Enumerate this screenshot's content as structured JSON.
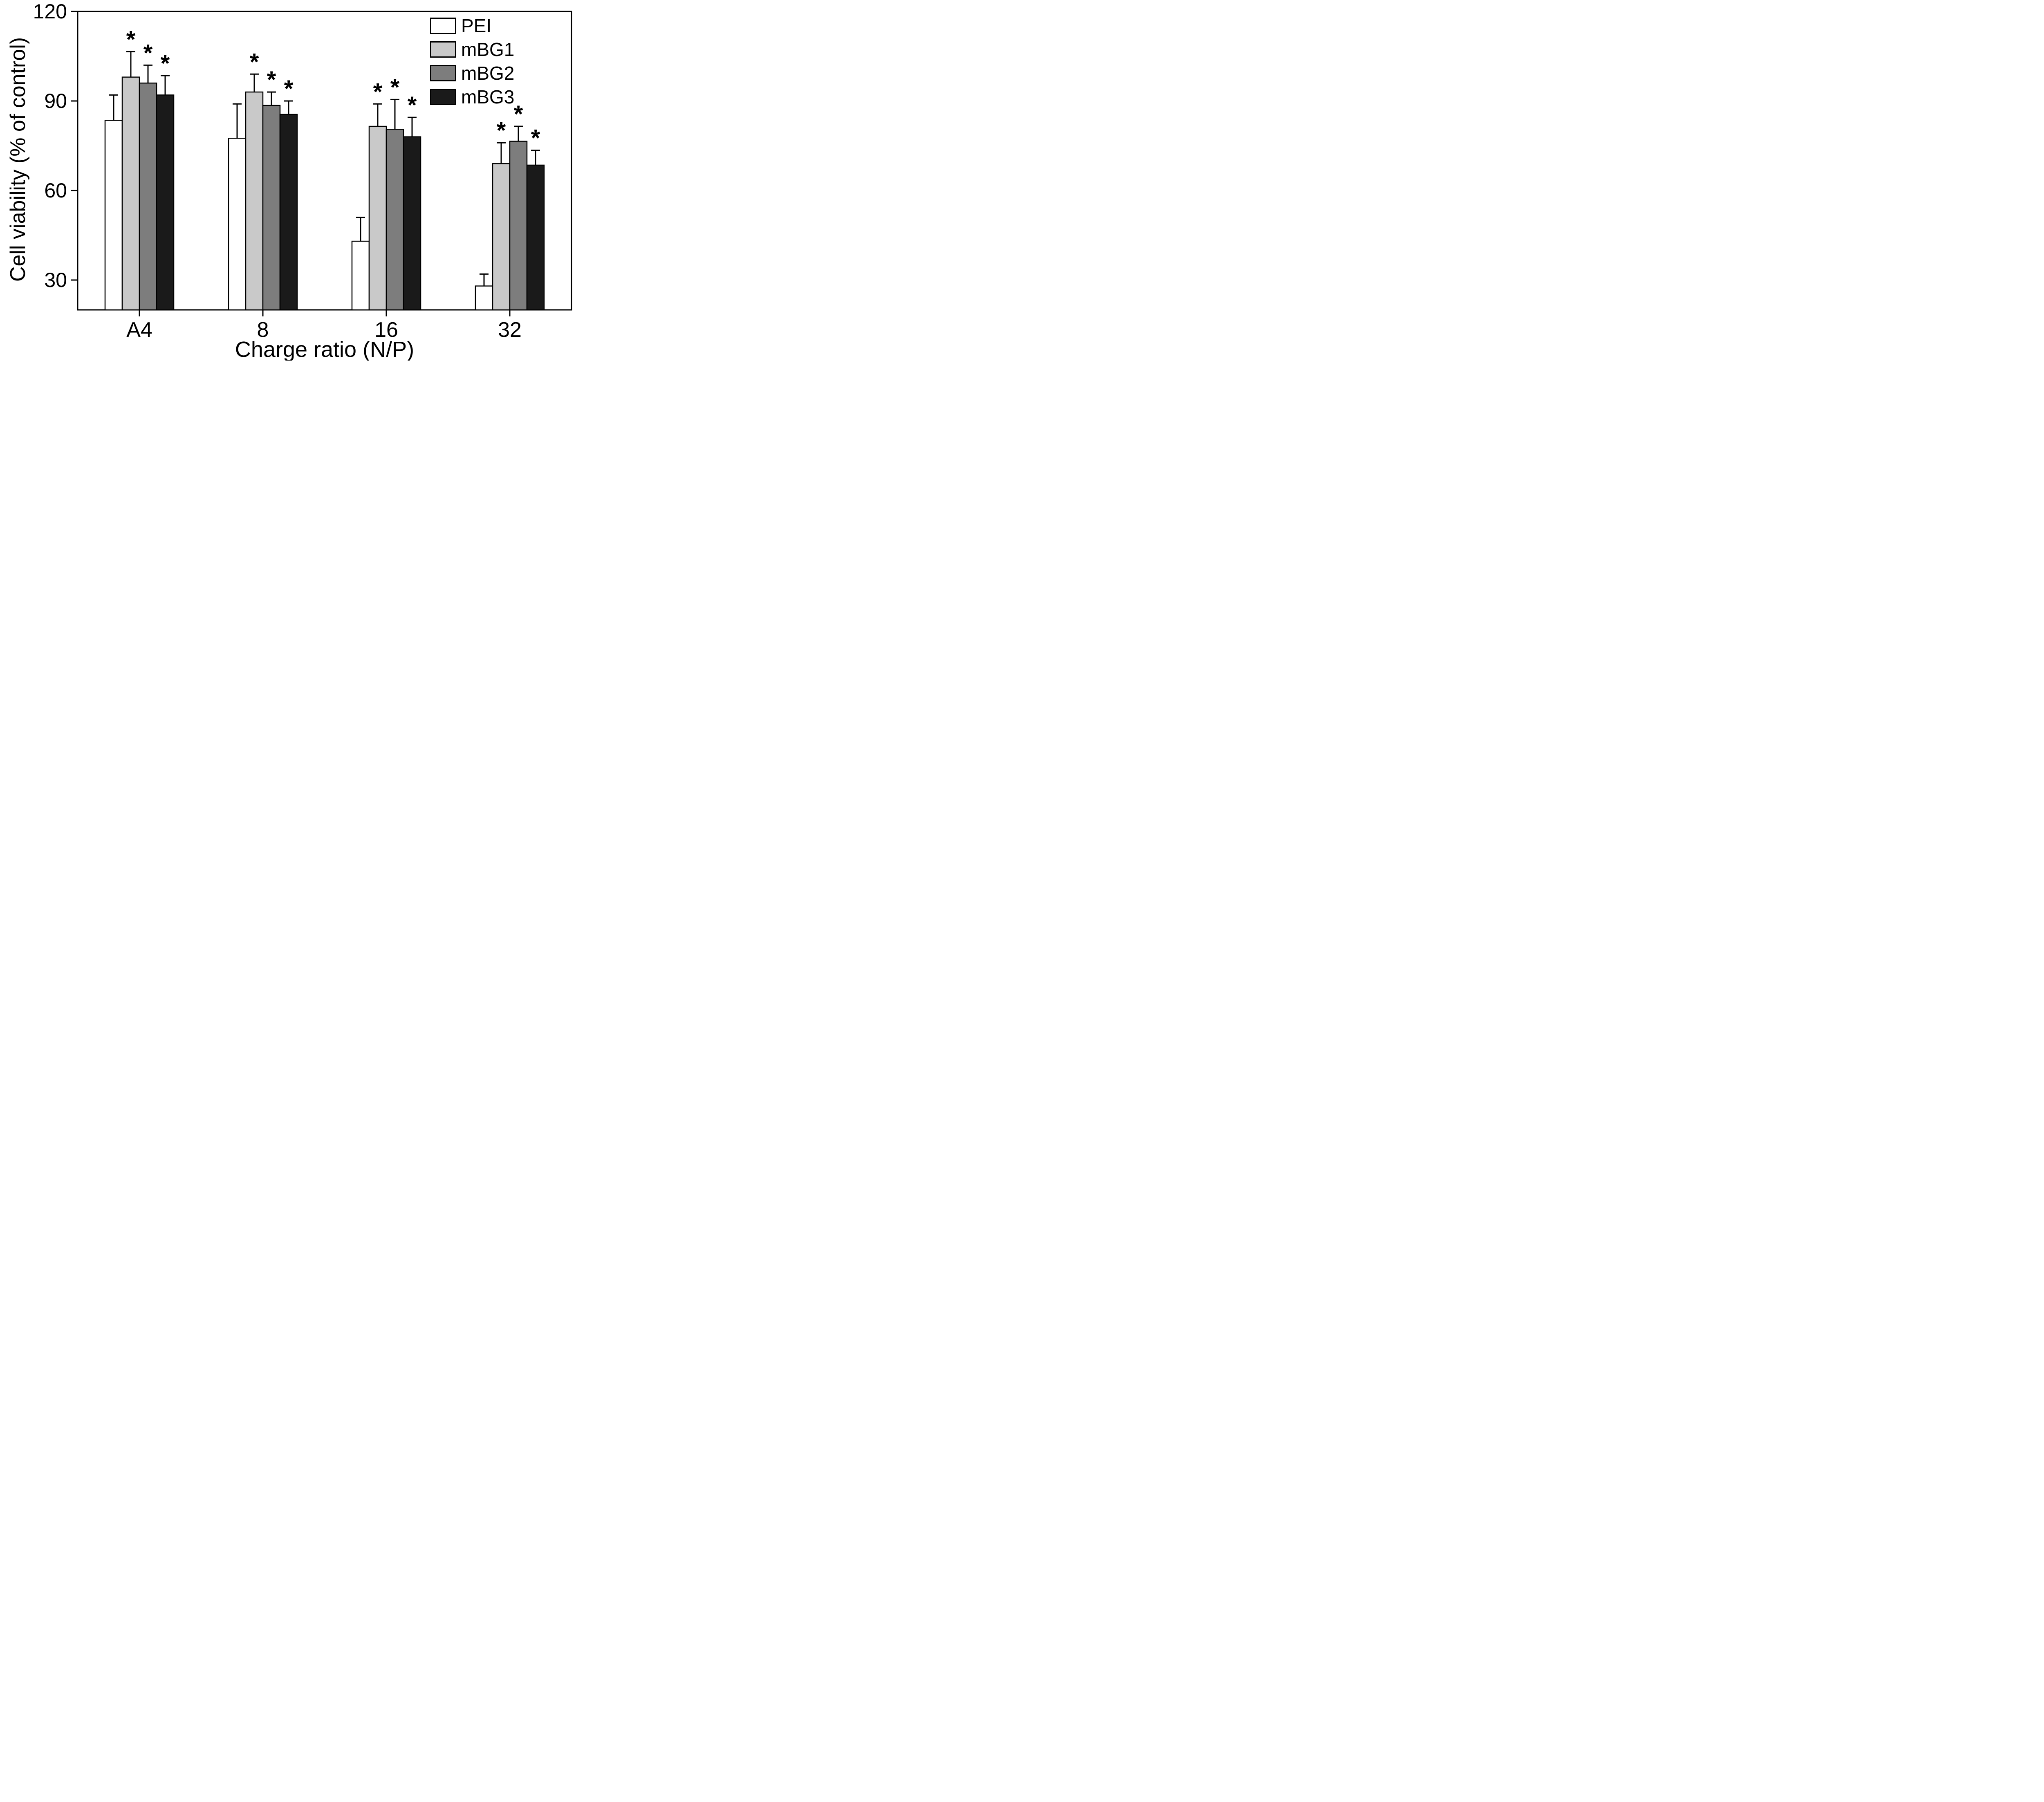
{
  "chart_data": {
    "type": "bar",
    "title": "",
    "xlabel": "Charge ratio (N/P)",
    "ylabel": "Cell viability (% of control)",
    "categories": [
      "A4",
      "8",
      "16",
      "32"
    ],
    "ylim": [
      20,
      120
    ],
    "yticks": [
      30,
      60,
      90,
      120
    ],
    "grid": false,
    "legend_position": "top-right",
    "significance_marker": "*",
    "plot_background": "#ffffff",
    "axis_color": "#000000",
    "series": [
      {
        "name": "PEI",
        "color": "#ffffff",
        "values": [
          83.5,
          77.5,
          43,
          28
        ],
        "errors": [
          8.5,
          11.5,
          8,
          4
        ],
        "significant": [
          false,
          false,
          false,
          false
        ]
      },
      {
        "name": "mBG1",
        "color": "#c9c9c9",
        "values": [
          98,
          93,
          81.5,
          69
        ],
        "errors": [
          8.5,
          6,
          7.5,
          7
        ],
        "significant": [
          true,
          true,
          true,
          true
        ]
      },
      {
        "name": "mBG2",
        "color": "#7d7d7d",
        "values": [
          96,
          88.5,
          80.5,
          76.5
        ],
        "errors": [
          6,
          4.5,
          10,
          5
        ],
        "significant": [
          true,
          true,
          true,
          true
        ]
      },
      {
        "name": "mBG3",
        "color": "#1a1a1a",
        "values": [
          92,
          85.5,
          78,
          68.5
        ],
        "errors": [
          6.5,
          4.5,
          6.5,
          5
        ],
        "significant": [
          true,
          true,
          true,
          true
        ]
      }
    ]
  }
}
